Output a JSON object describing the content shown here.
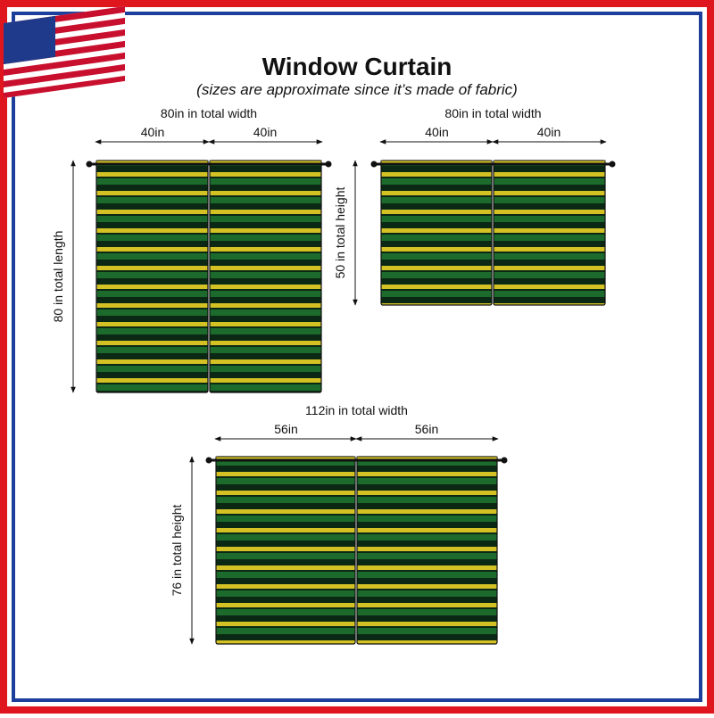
{
  "header": {
    "title": "Window Curtain",
    "subtitle": "(sizes are approximate since it’s made of fabric)"
  },
  "panels": [
    {
      "total_width": "80in in total width",
      "half_widths": [
        "40in",
        "40in"
      ],
      "height": "80 in total length"
    },
    {
      "total_width": "80in in total width",
      "half_widths": [
        "40in",
        "40in"
      ],
      "height": "50 in total height"
    },
    {
      "total_width": "112in in total width",
      "half_widths": [
        "56in",
        "56in"
      ],
      "height": "76 in total height"
    }
  ]
}
